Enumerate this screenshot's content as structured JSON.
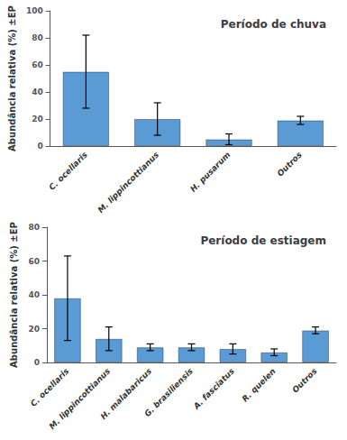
{
  "chart_data": [
    {
      "type": "bar",
      "title": "Período de chuva",
      "categories": [
        "C. ocellaris",
        "M. lippincottianus",
        "H. pusarum",
        "Outros"
      ],
      "values": [
        55,
        20,
        5,
        19
      ],
      "errors": [
        27,
        12,
        4,
        3
      ],
      "color": "#5b9bd5",
      "ylabel": "Abundância relativa (%) ±EP",
      "ylim": [
        0,
        100
      ],
      "yticks": [
        0,
        20,
        40,
        60,
        80,
        100
      ],
      "grid": false
    },
    {
      "type": "bar",
      "title": "Período de estiagem",
      "categories": [
        "C. ocellaris",
        "M. lippincottianus",
        "H. malabaricus",
        "G. brasiliensis",
        "A. fasciatus",
        "R. quelen",
        "Outros"
      ],
      "values": [
        38,
        14,
        9,
        9,
        8,
        6,
        19
      ],
      "errors": [
        25,
        7,
        2,
        2,
        3,
        2,
        2
      ],
      "color": "#5b9bd5",
      "ylabel": "Abundância relativa (%) ±EP",
      "ylim": [
        0,
        80
      ],
      "yticks": [
        0,
        20,
        40,
        60,
        80
      ],
      "grid": false
    }
  ]
}
